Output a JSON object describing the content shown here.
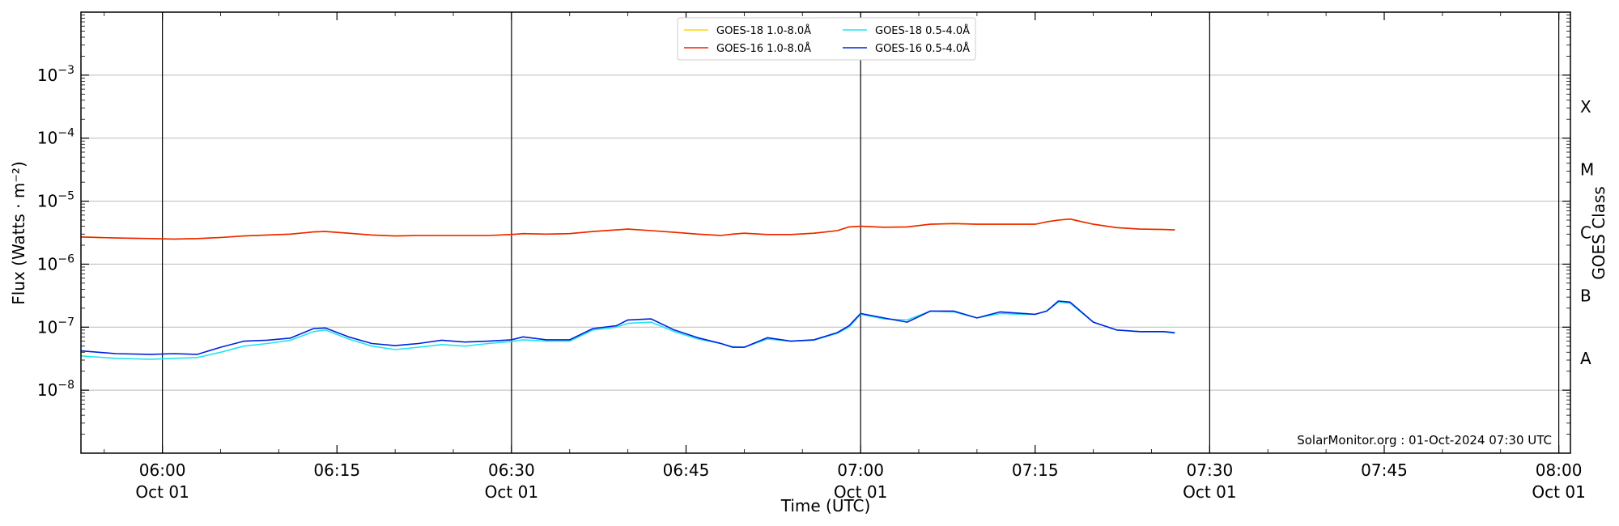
{
  "chart_data": {
    "type": "line",
    "xlabel": "Time (UTC)",
    "ylabel": "Flux (Watts · m⁻²)",
    "ylabel_right": "GOES Class",
    "credit": "SolarMonitor.org : 01-Oct-2024 07:30 UTC",
    "y_scale": "log",
    "ylim": [
      1e-09,
      0.01
    ],
    "xlim": [
      "2024-10-01 05:53",
      "2024-10-01 08:01"
    ],
    "grid": "horizontal at major y ticks",
    "legend_position": "top-center",
    "y_ticks": [
      {
        "value": 1e-08,
        "label": "10",
        "exp": "−8"
      },
      {
        "value": 1e-07,
        "label": "10",
        "exp": "−7"
      },
      {
        "value": 1e-06,
        "label": "10",
        "exp": "−6"
      },
      {
        "value": 1e-05,
        "label": "10",
        "exp": "−5"
      },
      {
        "value": 0.0001,
        "label": "10",
        "exp": "−4"
      },
      {
        "value": 0.001,
        "label": "10",
        "exp": "−3"
      }
    ],
    "x_ticks": [
      {
        "time": "06:00",
        "date": "Oct 01"
      },
      {
        "time": "06:15",
        "date": ""
      },
      {
        "time": "06:30",
        "date": "Oct 01"
      },
      {
        "time": "06:45",
        "date": ""
      },
      {
        "time": "07:00",
        "date": "Oct 01"
      },
      {
        "time": "07:15",
        "date": ""
      },
      {
        "time": "07:30",
        "date": "Oct 01"
      },
      {
        "time": "07:45",
        "date": ""
      },
      {
        "time": "08:00",
        "date": "Oct 01"
      }
    ],
    "vertical_lines": [
      "06:00",
      "06:30",
      "07:00",
      "07:30",
      "08:00"
    ],
    "goes_classes": [
      {
        "label": "A",
        "value": 3.16e-08
      },
      {
        "label": "B",
        "value": 3.16e-07
      },
      {
        "label": "C",
        "value": 3.16e-06
      },
      {
        "label": "M",
        "value": 3.16e-05
      },
      {
        "label": "X",
        "value": 0.000316
      }
    ],
    "x": [
      "05:53",
      "05:56",
      "05:59",
      "06:01",
      "06:03",
      "06:05",
      "06:07",
      "06:09",
      "06:11",
      "06:13",
      "06:14",
      "06:16",
      "06:18",
      "06:20",
      "06:22",
      "06:24",
      "06:26",
      "06:28",
      "06:30",
      "06:31",
      "06:33",
      "06:35",
      "06:37",
      "06:39",
      "06:40",
      "06:42",
      "06:44",
      "06:46",
      "06:48",
      "06:49",
      "06:50",
      "06:52",
      "06:54",
      "06:56",
      "06:58",
      "06:59",
      "07:00",
      "07:02",
      "07:04",
      "07:06",
      "07:08",
      "07:10",
      "07:12",
      "07:14",
      "07:15",
      "07:16",
      "07:17",
      "07:18",
      "07:20",
      "07:22",
      "07:24",
      "07:26",
      "07:27"
    ],
    "series": [
      {
        "name": "GOES-18 1.0-8.0Å",
        "color": "#ffd700",
        "values": [
          2.7e-06,
          2.6e-06,
          2.55e-06,
          2.5e-06,
          2.55e-06,
          2.65e-06,
          2.8e-06,
          2.9e-06,
          3e-06,
          3.25e-06,
          3.3e-06,
          3.1e-06,
          2.9e-06,
          2.8e-06,
          2.85e-06,
          2.85e-06,
          2.85e-06,
          2.85e-06,
          2.95e-06,
          3.05e-06,
          3e-06,
          3.05e-06,
          3.3e-06,
          3.5e-06,
          3.6e-06,
          3.4e-06,
          3.2e-06,
          3e-06,
          2.85e-06,
          3e-06,
          3.1e-06,
          2.95e-06,
          2.95e-06,
          3.1e-06,
          3.4e-06,
          3.9e-06,
          4e-06,
          3.85e-06,
          3.9e-06,
          4.3e-06,
          4.4e-06,
          4.3e-06,
          4.3e-06,
          4.3e-06,
          4.3e-06,
          4.7e-06,
          5e-06,
          5.2e-06,
          4.3e-06,
          3.8e-06,
          3.6e-06,
          3.55e-06,
          3.5e-06
        ]
      },
      {
        "name": "GOES-16 1.0-8.0Å",
        "color": "#ee2200",
        "values": [
          2.7e-06,
          2.6e-06,
          2.55e-06,
          2.5e-06,
          2.55e-06,
          2.65e-06,
          2.8e-06,
          2.9e-06,
          3e-06,
          3.25e-06,
          3.3e-06,
          3.1e-06,
          2.9e-06,
          2.8e-06,
          2.85e-06,
          2.85e-06,
          2.85e-06,
          2.85e-06,
          2.95e-06,
          3.05e-06,
          3e-06,
          3.05e-06,
          3.3e-06,
          3.5e-06,
          3.6e-06,
          3.4e-06,
          3.2e-06,
          3e-06,
          2.85e-06,
          3e-06,
          3.1e-06,
          2.95e-06,
          2.95e-06,
          3.1e-06,
          3.4e-06,
          3.9e-06,
          4e-06,
          3.85e-06,
          3.9e-06,
          4.3e-06,
          4.4e-06,
          4.3e-06,
          4.3e-06,
          4.3e-06,
          4.3e-06,
          4.7e-06,
          5e-06,
          5.2e-06,
          4.3e-06,
          3.8e-06,
          3.6e-06,
          3.55e-06,
          3.5e-06
        ]
      },
      {
        "name": "GOES-18 0.5-4.0Å",
        "color": "#22e5f0",
        "values": [
          3.5e-08,
          3.2e-08,
          3.1e-08,
          3.2e-08,
          3.3e-08,
          4e-08,
          5e-08,
          5.5e-08,
          6.2e-08,
          8.5e-08,
          9e-08,
          6.5e-08,
          5e-08,
          4.4e-08,
          4.8e-08,
          5.3e-08,
          5e-08,
          5.5e-08,
          5.9e-08,
          6.3e-08,
          6e-08,
          6e-08,
          9e-08,
          1e-07,
          1.15e-07,
          1.2e-07,
          8.5e-08,
          6.5e-08,
          5.5e-08,
          4.9e-08,
          4.8e-08,
          6.5e-08,
          6e-08,
          6.2e-08,
          8e-08,
          1e-07,
          1.6e-07,
          1.35e-07,
          1.3e-07,
          1.8e-07,
          1.75e-07,
          1.4e-07,
          1.65e-07,
          1.6e-07,
          1.6e-07,
          1.8e-07,
          2.5e-07,
          2.4e-07,
          1.2e-07,
          9e-08,
          8.5e-08,
          8.5e-08,
          8e-08
        ]
      },
      {
        "name": "GOES-16 0.5-4.0Å",
        "color": "#0022dd",
        "values": [
          4.2e-08,
          3.8e-08,
          3.7e-08,
          3.8e-08,
          3.7e-08,
          4.8e-08,
          6e-08,
          6.2e-08,
          6.7e-08,
          9.5e-08,
          9.7e-08,
          7e-08,
          5.5e-08,
          5.1e-08,
          5.5e-08,
          6.2e-08,
          5.8e-08,
          6e-08,
          6.3e-08,
          7e-08,
          6.3e-08,
          6.3e-08,
          9.5e-08,
          1.05e-07,
          1.3e-07,
          1.35e-07,
          9e-08,
          6.8e-08,
          5.5e-08,
          4.8e-08,
          4.8e-08,
          6.8e-08,
          6e-08,
          6.3e-08,
          8.2e-08,
          1.05e-07,
          1.65e-07,
          1.4e-07,
          1.2e-07,
          1.8e-07,
          1.8e-07,
          1.4e-07,
          1.75e-07,
          1.65e-07,
          1.6e-07,
          1.8e-07,
          2.6e-07,
          2.5e-07,
          1.2e-07,
          9e-08,
          8.5e-08,
          8.5e-08,
          8.2e-08
        ]
      }
    ]
  }
}
